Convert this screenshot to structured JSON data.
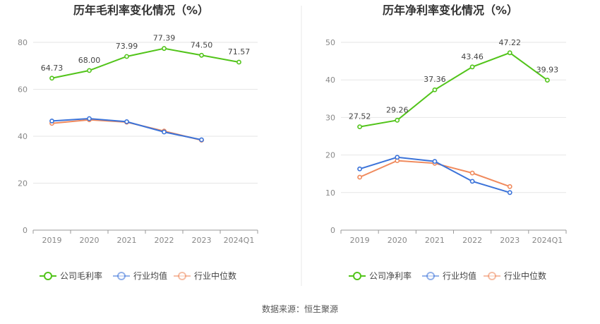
{
  "source_text": "数据来源：恒生聚源",
  "chart_data": [
    {
      "type": "line",
      "title": "历年毛利率变化情况（%）",
      "categories": [
        "2019",
        "2020",
        "2021",
        "2022",
        "2023",
        "2024Q1"
      ],
      "ylim": [
        0,
        80
      ],
      "yticks": [
        "0",
        "20",
        "40",
        "60",
        "80"
      ],
      "grid": true,
      "legend_position": "bottom",
      "series": [
        {
          "name": "公司毛利率",
          "color": "#52c41a",
          "values": [
            64.73,
            68.0,
            73.99,
            77.39,
            74.5,
            71.57
          ],
          "labels": [
            "64.73",
            "68.00",
            "73.99",
            "77.39",
            "74.50",
            "71.57"
          ]
        },
        {
          "name": "行业均值",
          "color": "#3b73d9",
          "values": [
            46.5,
            47.5,
            46.2,
            41.8,
            38.5,
            null
          ]
        },
        {
          "name": "行业中位数",
          "color": "#f08a5d",
          "values": [
            45.5,
            47.0,
            46.0,
            42.2,
            38.3,
            null
          ]
        }
      ]
    },
    {
      "type": "line",
      "title": "历年净利率变化情况（%）",
      "categories": [
        "2019",
        "2020",
        "2021",
        "2022",
        "2023",
        "2024Q1"
      ],
      "ylim": [
        0,
        50
      ],
      "yticks": [
        "0",
        "10",
        "20",
        "30",
        "40",
        "50"
      ],
      "grid": true,
      "legend_position": "bottom",
      "series": [
        {
          "name": "公司净利率",
          "color": "#52c41a",
          "values": [
            27.52,
            29.26,
            37.36,
            43.46,
            47.22,
            39.93
          ],
          "labels": [
            "27.52",
            "29.26",
            "37.36",
            "43.46",
            "47.22",
            "39.93"
          ]
        },
        {
          "name": "行业均值",
          "color": "#3b73d9",
          "values": [
            16.3,
            19.4,
            18.3,
            13.0,
            10.0,
            null
          ]
        },
        {
          "name": "行业中位数",
          "color": "#f08a5d",
          "values": [
            14.1,
            18.5,
            17.8,
            15.2,
            11.6,
            null
          ]
        }
      ]
    }
  ]
}
